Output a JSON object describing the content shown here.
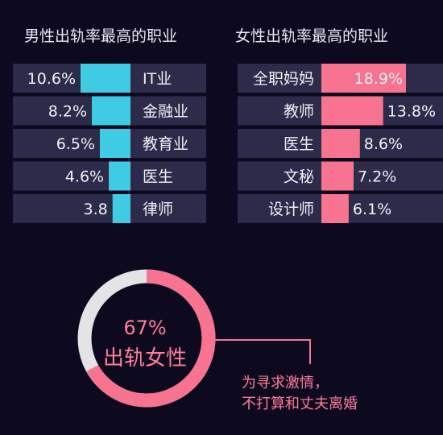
{
  "chart_data": [
    {
      "type": "bar",
      "title": "男性出轨率最高的职业",
      "categories": [
        "IT业",
        "金融业",
        "教育业",
        "医生",
        "律师"
      ],
      "values": [
        10.6,
        8.2,
        6.5,
        4.6,
        3.8
      ],
      "value_labels": [
        "10.6%",
        "8.2%",
        "6.5%",
        "4.6%",
        "3.8"
      ],
      "color": "#3fcbe3"
    },
    {
      "type": "bar",
      "title": "女性出轨率最高的职业",
      "categories": [
        "全职妈妈",
        "教师",
        "医生",
        "文秘",
        "设计师"
      ],
      "values": [
        18.9,
        13.8,
        8.6,
        7.2,
        6.1
      ],
      "value_labels": [
        "18.9%",
        "13.8%",
        "8.6%",
        "7.2%",
        "6.1%"
      ],
      "color": "#f8738f"
    },
    {
      "type": "pie",
      "categories": [
        "出轨女性"
      ],
      "values": [
        67
      ],
      "value_label": "67%",
      "label": "出轨女性",
      "annotation": [
        "为寻求激情，",
        "不打算和丈夫离婚"
      ],
      "color": "#f8738f",
      "rest_color": "#e4e4e8"
    }
  ],
  "colors": {
    "row_bg": "#2c2c4a",
    "background": "#0d0a1f"
  }
}
